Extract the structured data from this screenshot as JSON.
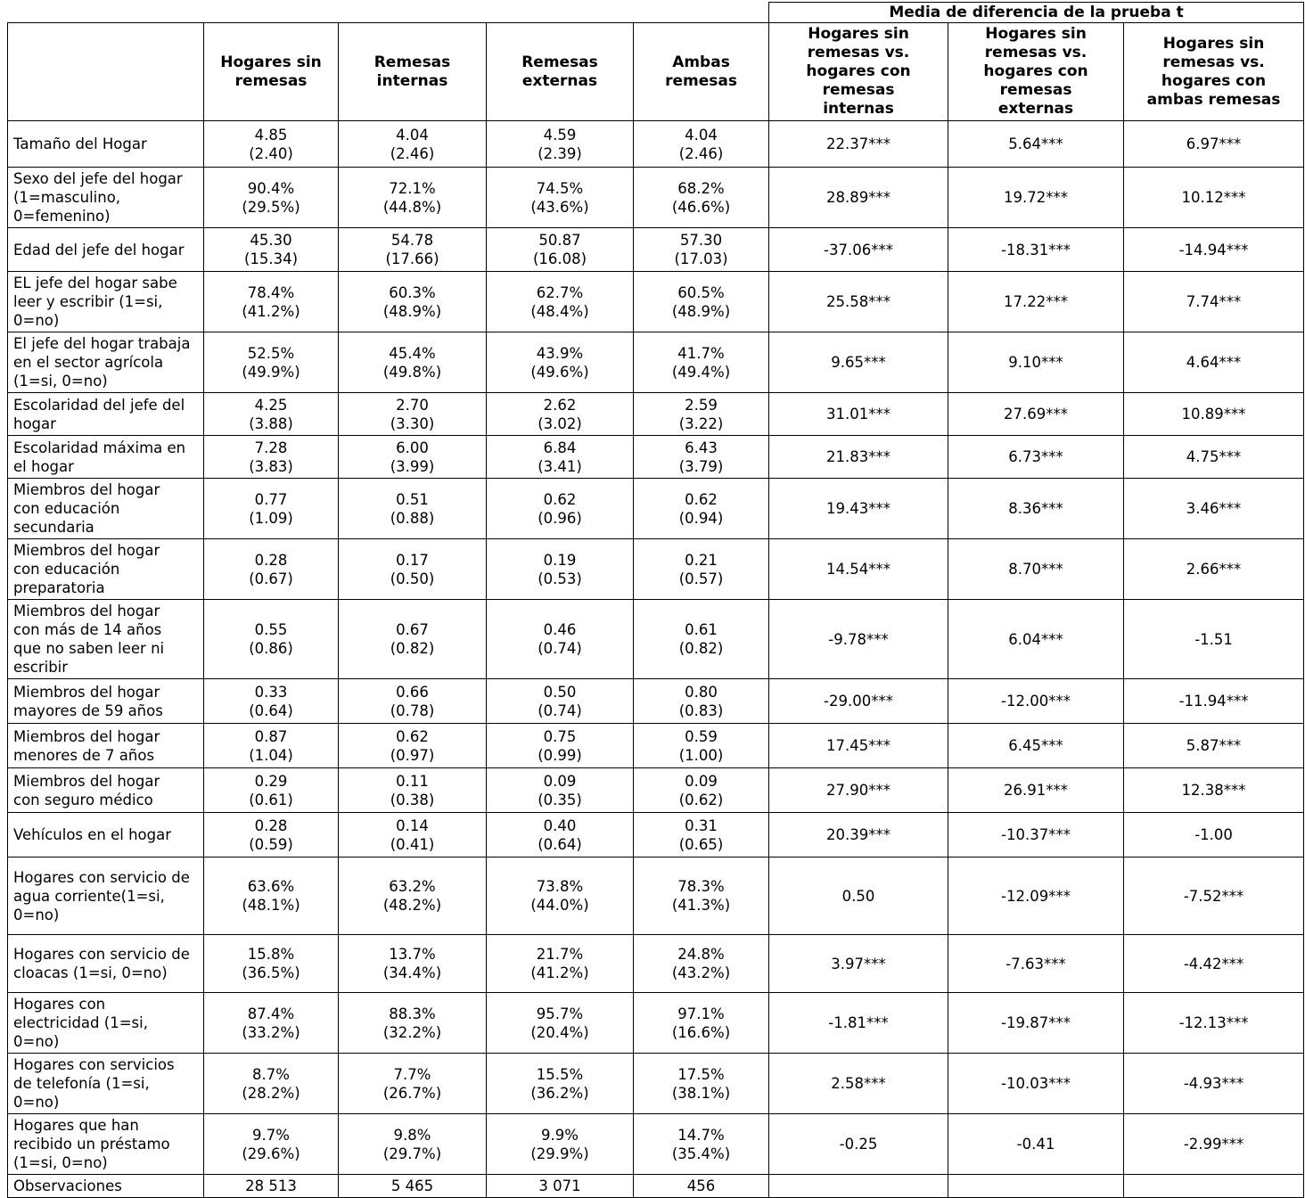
{
  "header": {
    "media_title": "Media de diferencia de la prueba t",
    "variable_column": "",
    "group_columns": [
      "Hogares sin remesas",
      "Remesas internas",
      "Remesas externas",
      "Ambas remesas"
    ],
    "test_columns": [
      "Hogares sin remesas vs. hogares con remesas internas",
      "Hogares sin remesas vs. hogares con remesas externas",
      "Hogares sin remesas vs. hogares con ambas remesas"
    ]
  },
  "rows": [
    {
      "label": "Tamaño del Hogar",
      "stats": [
        {
          "m": "4.85",
          "s": "(2.40)"
        },
        {
          "m": "4.04",
          "s": "(2.46)"
        },
        {
          "m": "4.59",
          "s": "(2.39)"
        },
        {
          "m": "4.04",
          "s": "(2.46)"
        }
      ],
      "tests": [
        "22.37***",
        "5.64***",
        "6.97***"
      ]
    },
    {
      "label": "Sexo del jefe del hogar (1=masculino, 0=femenino)",
      "stats": [
        {
          "m": "90.4%",
          "s": "(29.5%)"
        },
        {
          "m": "72.1%",
          "s": "(44.8%)"
        },
        {
          "m": "74.5%",
          "s": "(43.6%)"
        },
        {
          "m": "68.2%",
          "s": "(46.6%)"
        }
      ],
      "tests": [
        "28.89***",
        "19.72***",
        "10.12***"
      ]
    },
    {
      "label": "Edad del jefe del hogar",
      "stats": [
        {
          "m": "45.30",
          "s": "(15.34)"
        },
        {
          "m": "54.78",
          "s": "(17.66)"
        },
        {
          "m": "50.87",
          "s": "(16.08)"
        },
        {
          "m": "57.30",
          "s": "(17.03)"
        }
      ],
      "tests": [
        "-37.06***",
        "-18.31***",
        "-14.94***"
      ]
    },
    {
      "label": "EL jefe del hogar sabe leer y escribir (1=si, 0=no)",
      "stats": [
        {
          "m": "78.4%",
          "s": "(41.2%)"
        },
        {
          "m": "60.3%",
          "s": "(48.9%)"
        },
        {
          "m": "62.7%",
          "s": "(48.4%)"
        },
        {
          "m": "60.5%",
          "s": "(48.9%)"
        }
      ],
      "tests": [
        "25.58***",
        "17.22***",
        "7.74***"
      ]
    },
    {
      "label": "El jefe del hogar trabaja en el sector agrícola (1=si, 0=no)",
      "stats": [
        {
          "m": "52.5%",
          "s": "(49.9%)"
        },
        {
          "m": "45.4%",
          "s": "(49.8%)"
        },
        {
          "m": "43.9%",
          "s": "(49.6%)"
        },
        {
          "m": "41.7%",
          "s": "(49.4%)"
        }
      ],
      "tests": [
        "9.65***",
        "9.10***",
        "4.64***"
      ]
    },
    {
      "label": "Escolaridad del jefe del hogar",
      "stats": [
        {
          "m": "4.25",
          "s": "(3.88)"
        },
        {
          "m": "2.70",
          "s": "(3.30)"
        },
        {
          "m": "2.62",
          "s": "(3.02)"
        },
        {
          "m": "2.59",
          "s": "(3.22)"
        }
      ],
      "tests": [
        "31.01***",
        "27.69***",
        "10.89***"
      ]
    },
    {
      "label": "Escolaridad máxima en el hogar",
      "stats": [
        {
          "m": "7.28",
          "s": "(3.83)"
        },
        {
          "m": "6.00",
          "s": "(3.99)"
        },
        {
          "m": "6.84",
          "s": "(3.41)"
        },
        {
          "m": "6.43",
          "s": "(3.79)"
        }
      ],
      "tests": [
        "21.83***",
        "6.73***",
        "4.75***"
      ]
    },
    {
      "label": "Miembros del hogar con educación secundaria",
      "stats": [
        {
          "m": "0.77",
          "s": "(1.09)"
        },
        {
          "m": "0.51",
          "s": "(0.88)"
        },
        {
          "m": "0.62",
          "s": "(0.96)"
        },
        {
          "m": "0.62",
          "s": "(0.94)"
        }
      ],
      "tests": [
        "19.43***",
        "8.36***",
        "3.46***"
      ]
    },
    {
      "label": "Miembros del hogar con educación preparatoria",
      "stats": [
        {
          "m": "0.28",
          "s": "(0.67)"
        },
        {
          "m": "0.17",
          "s": "(0.50)"
        },
        {
          "m": "0.19",
          "s": "(0.53)"
        },
        {
          "m": "0.21",
          "s": "(0.57)"
        }
      ],
      "tests": [
        "14.54***",
        "8.70***",
        "2.66***"
      ]
    },
    {
      "label": "Miembros del hogar con más de 14 años que no saben leer ni escribir",
      "stats": [
        {
          "m": "0.55",
          "s": "(0.86)"
        },
        {
          "m": "0.67",
          "s": "(0.82)"
        },
        {
          "m": "0.46",
          "s": "(0.74)"
        },
        {
          "m": "0.61",
          "s": "(0.82)"
        }
      ],
      "tests": [
        "-9.78***",
        "6.04***",
        "-1.51"
      ]
    },
    {
      "label": "Miembros del hogar mayores de 59 años",
      "stats": [
        {
          "m": "0.33",
          "s": "(0.64)"
        },
        {
          "m": "0.66",
          "s": "(0.78)"
        },
        {
          "m": "0.50",
          "s": "(0.74)"
        },
        {
          "m": "0.80",
          "s": "(0.83)"
        }
      ],
      "tests": [
        "-29.00***",
        "-12.00***",
        "-11.94***"
      ]
    },
    {
      "label": "Miembros del hogar menores de 7 años",
      "stats": [
        {
          "m": "0.87",
          "s": "(1.04)"
        },
        {
          "m": "0.62",
          "s": "(0.97)"
        },
        {
          "m": "0.75",
          "s": "(0.99)"
        },
        {
          "m": "0.59",
          "s": "(1.00)"
        }
      ],
      "tests": [
        "17.45***",
        "6.45***",
        "5.87***"
      ]
    },
    {
      "label": "Miembros del hogar con seguro médico",
      "stats": [
        {
          "m": "0.29",
          "s": "(0.61)"
        },
        {
          "m": "0.11",
          "s": "(0.38)"
        },
        {
          "m": "0.09",
          "s": "(0.35)"
        },
        {
          "m": "0.09",
          "s": "(0.62)"
        }
      ],
      "tests": [
        "27.90***",
        "26.91***",
        "12.38***"
      ]
    },
    {
      "label": "Vehículos en el hogar",
      "stats": [
        {
          "m": "0.28",
          "s": "(0.59)"
        },
        {
          "m": "0.14",
          "s": "(0.41)"
        },
        {
          "m": "0.40",
          "s": "(0.64)"
        },
        {
          "m": "0.31",
          "s": "(0.65)"
        }
      ],
      "tests": [
        "20.39***",
        "-10.37***",
        "-1.00"
      ]
    },
    {
      "label": "Hogares con servicio de agua corriente(1=si, 0=no)",
      "stats": [
        {
          "m": "63.6%",
          "s": "(48.1%)"
        },
        {
          "m": "63.2%",
          "s": "(48.2%)"
        },
        {
          "m": "73.8%",
          "s": "(44.0%)"
        },
        {
          "m": "78.3%",
          "s": "(41.3%)"
        }
      ],
      "tests": [
        "0.50",
        "-12.09***",
        "-7.52***"
      ]
    },
    {
      "label": "Hogares con servicio de cloacas (1=si, 0=no)",
      "stats": [
        {
          "m": "15.8%",
          "s": "(36.5%)"
        },
        {
          "m": "13.7%",
          "s": "(34.4%)"
        },
        {
          "m": "21.7%",
          "s": "(41.2%)"
        },
        {
          "m": "24.8%",
          "s": "(43.2%)"
        }
      ],
      "tests": [
        "3.97***",
        "-7.63***",
        "-4.42***"
      ]
    },
    {
      "label": "Hogares con electricidad (1=si, 0=no)",
      "stats": [
        {
          "m": "87.4%",
          "s": "(33.2%)"
        },
        {
          "m": "88.3%",
          "s": "(32.2%)"
        },
        {
          "m": "95.7%",
          "s": "(20.4%)"
        },
        {
          "m": "97.1%",
          "s": "(16.6%)"
        }
      ],
      "tests": [
        "-1.81***",
        "-19.87***",
        "-12.13***"
      ]
    },
    {
      "label": "Hogares con servicios de telefonía (1=si, 0=no)",
      "stats": [
        {
          "m": "8.7%",
          "s": "(28.2%)"
        },
        {
          "m": "7.7%",
          "s": "(26.7%)"
        },
        {
          "m": "15.5%",
          "s": "(36.2%)"
        },
        {
          "m": "17.5%",
          "s": "(38.1%)"
        }
      ],
      "tests": [
        "2.58***",
        "-10.03***",
        "-4.93***"
      ]
    },
    {
      "label": "Hogares que han recibido un préstamo (1=si, 0=no)",
      "stats": [
        {
          "m": "9.7%",
          "s": "(29.6%)"
        },
        {
          "m": "9.8%",
          "s": "(29.7%)"
        },
        {
          "m": "9.9%",
          "s": "(29.9%)"
        },
        {
          "m": "14.7%",
          "s": "(35.4%)"
        }
      ],
      "tests": [
        "-0.25",
        "-0.41",
        "-2.99***"
      ]
    },
    {
      "label": "Observaciones",
      "stats": [
        {
          "m": "28 513",
          "s": ""
        },
        {
          "m": "5 465",
          "s": ""
        },
        {
          "m": "3 071",
          "s": ""
        },
        {
          "m": "456",
          "s": ""
        }
      ],
      "tests": [
        "",
        "",
        ""
      ]
    }
  ]
}
